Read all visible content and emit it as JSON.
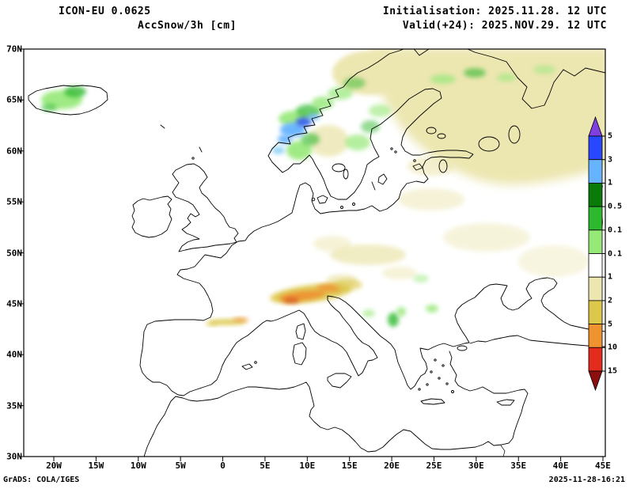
{
  "header": {
    "model": "ICON-EU 0.0625",
    "variable": "AccSnow/3h [cm]",
    "initialisation": "Initialisation: 2025.11.28. 12 UTC",
    "valid": "Valid(+24): 2025.NOV.29. 12 UTC"
  },
  "map": {
    "lat_ticks": [
      "70N",
      "65N",
      "60N",
      "55N",
      "50N",
      "45N",
      "40N",
      "35N",
      "30N"
    ],
    "lon_ticks": [
      "20W",
      "15W",
      "10W",
      "5W",
      "0",
      "5E",
      "10E",
      "15E",
      "20E",
      "25E",
      "30E",
      "35E",
      "40E",
      "45E"
    ]
  },
  "colorbar": {
    "labels": [
      "5",
      "3",
      "1",
      "0.5",
      "0.1",
      "0.1",
      "1",
      "2",
      "5",
      "10",
      "15"
    ],
    "colors": [
      "#8040e0",
      "#2848ff",
      "#66b3ff",
      "#0a7a0a",
      "#2db82d",
      "#96e878",
      "#ffffff",
      "#ece6b0",
      "#dcc84b",
      "#ef9331",
      "#e22c1d",
      "#8b0f0f"
    ]
  },
  "footer": {
    "credit": "GrADS: COLA/IGES",
    "timestamp": "2025-11-28-16:21"
  }
}
